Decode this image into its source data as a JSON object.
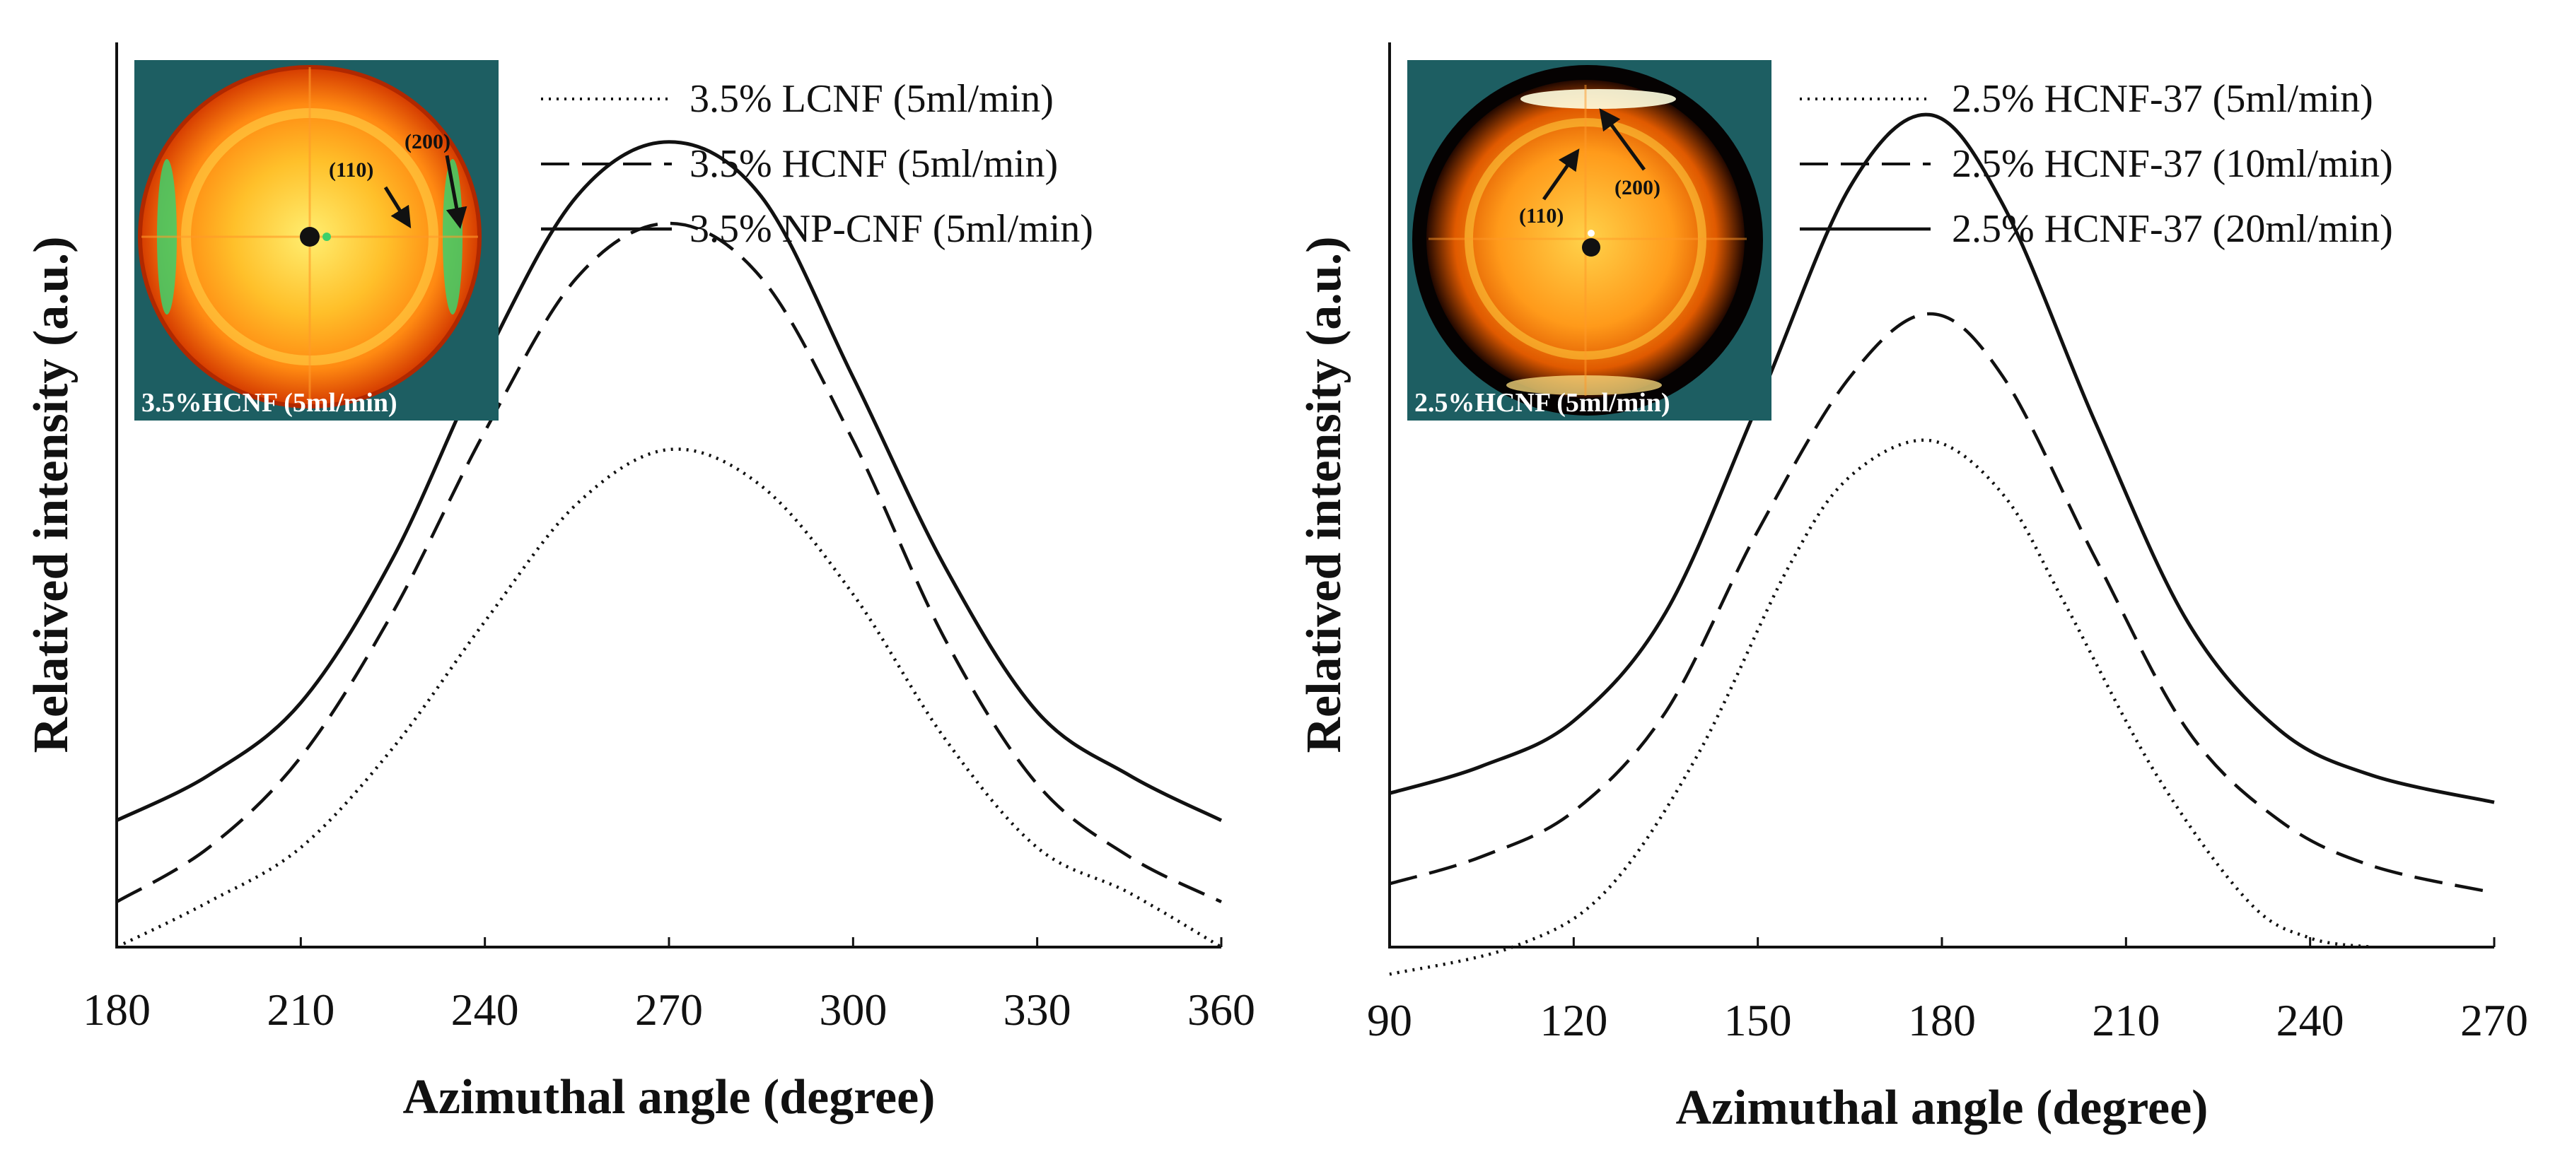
{
  "chart_data": [
    {
      "type": "line",
      "xlabel": "Azimuthal angle (degree)",
      "ylabel": "Relatived intensity (a.u.)",
      "xlim": [
        180,
        360
      ],
      "ylim": [
        0,
        1
      ],
      "xticks": [
        "180",
        "210",
        "240",
        "270",
        "300",
        "330",
        "360"
      ],
      "grid": false,
      "legend_position": "top-right",
      "series": [
        {
          "name": "3.5% LCNF (5ml/min)",
          "style": "dotted",
          "x": [
            180,
            195,
            210,
            225,
            240,
            255,
            270,
            285,
            300,
            315,
            330,
            345,
            360
          ],
          "y": [
            0.0,
            0.05,
            0.11,
            0.22,
            0.36,
            0.49,
            0.55,
            0.51,
            0.39,
            0.23,
            0.11,
            0.06,
            0.0
          ]
        },
        {
          "name": "3.5% HCNF (5ml/min)",
          "style": "dashed",
          "x": [
            180,
            195,
            210,
            225,
            240,
            255,
            270,
            285,
            300,
            315,
            330,
            345,
            360
          ],
          "y": [
            0.05,
            0.11,
            0.21,
            0.37,
            0.57,
            0.74,
            0.8,
            0.74,
            0.56,
            0.34,
            0.18,
            0.1,
            0.05
          ]
        },
        {
          "name": "3.5% NP-CNF (5ml/min)",
          "style": "solid",
          "x": [
            180,
            195,
            210,
            225,
            240,
            255,
            270,
            285,
            300,
            315,
            330,
            345,
            360
          ],
          "y": [
            0.14,
            0.19,
            0.27,
            0.43,
            0.65,
            0.83,
            0.89,
            0.83,
            0.63,
            0.42,
            0.26,
            0.19,
            0.14
          ]
        }
      ],
      "inset": {
        "caption": "3.5%HCNF (5ml/min)",
        "reflections": [
          "(110)",
          "(200)"
        ]
      }
    },
    {
      "type": "line",
      "xlabel": "Azimuthal angle (degree)",
      "ylabel": "Relatived intensity (a.u.)",
      "xlim": [
        90,
        270
      ],
      "ylim": [
        0,
        1
      ],
      "xticks": [
        "90",
        "120",
        "150",
        "180",
        "210",
        "240",
        "270"
      ],
      "grid": false,
      "legend_position": "top-right",
      "series": [
        {
          "name": "2.5% HCNF-37 (5ml/min)",
          "style": "dotted",
          "x": [
            90,
            110,
            125,
            140,
            155,
            165,
            178,
            190,
            200,
            215,
            230,
            240,
            250
          ],
          "y": [
            -0.03,
            0.0,
            0.06,
            0.21,
            0.42,
            0.52,
            0.56,
            0.5,
            0.38,
            0.19,
            0.05,
            0.01,
            0.0
          ]
        },
        {
          "name": "2.5% HCNF-37 (10ml/min)",
          "style": "dashed",
          "x": [
            90,
            105,
            120,
            135,
            150,
            165,
            178,
            190,
            205,
            220,
            235,
            250,
            270
          ],
          "y": [
            0.07,
            0.1,
            0.15,
            0.26,
            0.46,
            0.63,
            0.7,
            0.63,
            0.43,
            0.24,
            0.14,
            0.09,
            0.06
          ]
        },
        {
          "name": "2.5% HCNF-37 (20ml/min)",
          "style": "solid",
          "x": [
            90,
            105,
            120,
            135,
            150,
            165,
            178,
            190,
            205,
            220,
            235,
            250,
            270
          ],
          "y": [
            0.17,
            0.2,
            0.25,
            0.37,
            0.6,
            0.84,
            0.92,
            0.82,
            0.58,
            0.36,
            0.24,
            0.19,
            0.16
          ]
        }
      ],
      "inset": {
        "caption": "2.5%HCNF (5ml/min)",
        "reflections": [
          "(110)",
          "(200)"
        ]
      }
    }
  ]
}
